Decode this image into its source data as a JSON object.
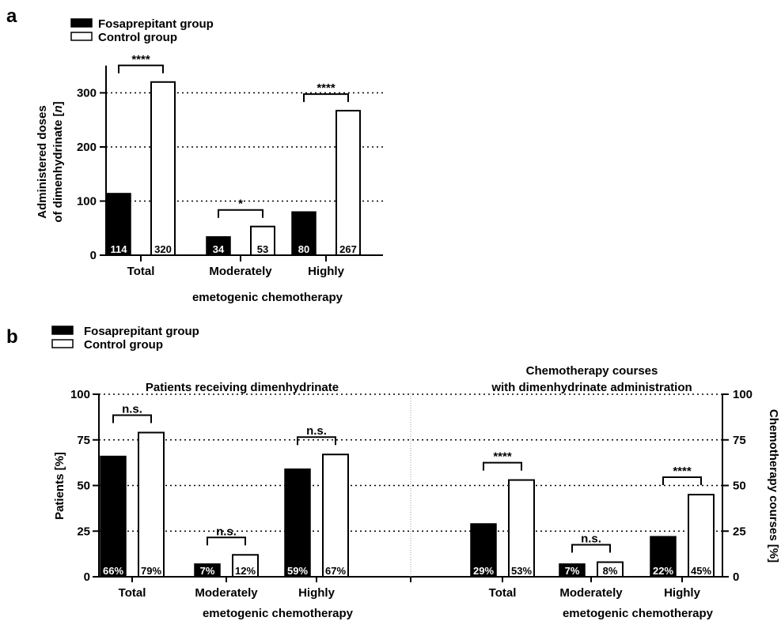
{
  "chart_data": [
    {
      "panel": "a",
      "type": "bar",
      "legend": [
        "Fosaprepitant group",
        "Control group"
      ],
      "categories": [
        "Total",
        "Moderately",
        "Highly"
      ],
      "xlabel": "emetogenic chemotherapy",
      "ylabel_lines": [
        "Administered doses",
        "of dimenhydrinate [",
        "n",
        "]"
      ],
      "ylim": [
        0,
        350
      ],
      "yticks": [
        0,
        100,
        200,
        300
      ],
      "grid": "dotted horizontal at 100, 200, 300",
      "series": [
        {
          "name": "Fosaprepitant group",
          "fill": "#000000",
          "values": [
            114,
            34,
            80
          ],
          "labels": [
            "114",
            "34",
            "80"
          ]
        },
        {
          "name": "Control group",
          "fill": "#ffffff",
          "values": [
            320,
            53,
            267
          ],
          "labels": [
            "320",
            "53",
            "267"
          ]
        }
      ],
      "significance": [
        "****",
        "*",
        "****"
      ]
    },
    {
      "panel": "b",
      "type": "bar",
      "legend": [
        "Fosaprepitant group",
        "Control group"
      ],
      "ylim": [
        0,
        100
      ],
      "yticks": [
        "0",
        "25",
        "50",
        "75",
        "100"
      ],
      "ylabel_left": "Patients [%]",
      "ylabel_right": "Chemotherapy courses [%]",
      "xlabel": "emetogenic chemotherapy",
      "groups": [
        {
          "title": [
            "Patients receiving dimenhydrinate"
          ],
          "categories": [
            "Total",
            "Moderately",
            "Highly"
          ],
          "series": [
            {
              "name": "Fosaprepitant group",
              "fill": "#000000",
              "values": [
                66,
                7,
                59
              ],
              "labels": [
                "66%",
                "7%",
                "59%"
              ]
            },
            {
              "name": "Control group",
              "fill": "#ffffff",
              "values": [
                79,
                12,
                67
              ],
              "labels": [
                "79%",
                "12%",
                "67%"
              ]
            }
          ],
          "significance": [
            "n.s.",
            "n.s.",
            "n.s."
          ]
        },
        {
          "title": [
            "Chemotherapy courses",
            "with dimenhydrinate administration"
          ],
          "categories": [
            "Total",
            "Moderately",
            "Highly"
          ],
          "series": [
            {
              "name": "Fosaprepitant group",
              "fill": "#000000",
              "values": [
                29,
                7,
                22
              ],
              "labels": [
                "29%",
                "7%",
                "22%"
              ]
            },
            {
              "name": "Control group",
              "fill": "#ffffff",
              "values": [
                53,
                8,
                45
              ],
              "labels": [
                "53%",
                "8%",
                "45%"
              ]
            }
          ],
          "significance": [
            "****",
            "n.s.",
            "****"
          ]
        }
      ]
    }
  ]
}
